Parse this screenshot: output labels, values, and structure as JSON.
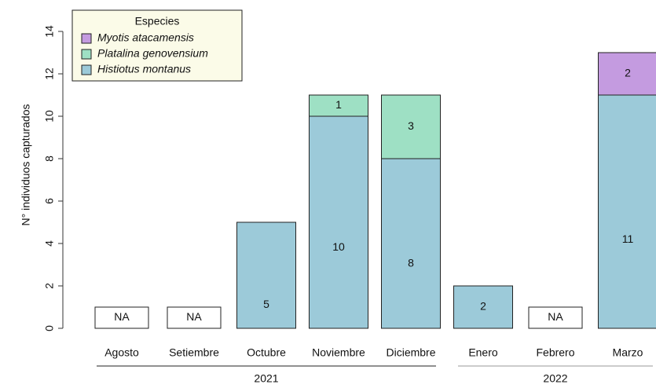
{
  "chart_data": {
    "type": "stacked-bar",
    "y_label": "N° individuos capturados",
    "categories": [
      "Agosto",
      "Setiembre",
      "Octubre",
      "Noviembre",
      "Diciembre",
      "Enero",
      "Febrero",
      "Marzo"
    ],
    "series": [
      {
        "name": "Histiotus montanus",
        "color": "#9ccad9",
        "values": [
          null,
          null,
          5,
          10,
          8,
          2,
          null,
          11
        ]
      },
      {
        "name": "Platalina genovensium",
        "color": "#9ee0c4",
        "values": [
          null,
          null,
          null,
          1,
          3,
          null,
          null,
          null
        ]
      },
      {
        "name": "Myotis atacamensis",
        "color": "#c49be0",
        "values": [
          null,
          null,
          null,
          null,
          null,
          null,
          null,
          2
        ]
      }
    ],
    "na_boxes": {
      "label": "NA",
      "color": "#ffffff",
      "values": [
        1,
        1,
        null,
        null,
        null,
        null,
        1,
        null
      ]
    },
    "legend_title": "Especies",
    "legend_position": "top-left",
    "groups": [
      {
        "label": "2021",
        "count": 5
      },
      {
        "label": "2022",
        "count": 3
      }
    ],
    "ylim": [
      0,
      14
    ],
    "yticks": [
      0,
      2,
      4,
      6,
      8,
      10,
      12,
      14
    ]
  }
}
